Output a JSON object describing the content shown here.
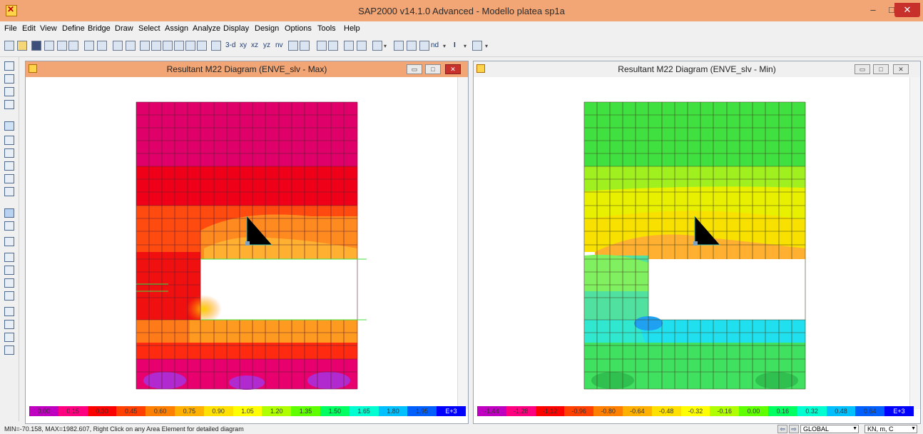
{
  "window": {
    "title": "SAP2000 v14.1.0 Advanced  - Modello platea sp1a",
    "minimize": "–",
    "maximize": "□",
    "close": "✕"
  },
  "menu": [
    "File",
    "Edit",
    "View",
    "Define",
    "Bridge",
    "Draw",
    "Select",
    "Assign",
    "Analyze",
    "Display",
    "Design",
    "Options",
    "Tools",
    "Help"
  ],
  "toolbar": {
    "view_3d": "3-d",
    "view_xy": "xy",
    "view_xz": "xz",
    "view_yz": "yz",
    "view_nv": "nv",
    "nd_label": "nd",
    "i_label": "I"
  },
  "panels": {
    "left": {
      "title": "Resultant M22 Diagram  (ENVE_slv - Max)",
      "legend": [
        "0.00",
        "0.15",
        "0.30",
        "0.45",
        "0.60",
        "0.75",
        "0.90",
        "1.05",
        "1.20",
        "1.35",
        "1.50",
        "1.65",
        "1.80",
        "1.95",
        "E+3"
      ],
      "legend_colors": [
        "#c000c0",
        "#ff0080",
        "#ff0000",
        "#ff4000",
        "#ff8000",
        "#ffb000",
        "#ffe000",
        "#ffff00",
        "#b0ff00",
        "#60ff00",
        "#00ff60",
        "#00ffd0",
        "#00c0ff",
        "#0060ff",
        "#0000ff"
      ]
    },
    "right": {
      "title": "Resultant M22 Diagram  (ENVE_slv - Min)",
      "legend": [
        "-1.44",
        "-1.28",
        "-1.12",
        "-0.96",
        "-0.80",
        "-0.64",
        "-0.48",
        "-0.32",
        "-0.16",
        "0.00",
        "0.16",
        "0.32",
        "0.48",
        "0.64",
        "E+3"
      ],
      "legend_colors": [
        "#c000c0",
        "#ff0080",
        "#ff0000",
        "#ff4000",
        "#ff8000",
        "#ffb000",
        "#ffe000",
        "#ffff00",
        "#b0ff00",
        "#60ff00",
        "#00ff60",
        "#00ffd0",
        "#00c0ff",
        "#0060ff",
        "#0000ff"
      ]
    }
  },
  "status": {
    "text": "MIN=-70.158, MAX=1982.607, Right Click on any Area Element for detailed diagram",
    "coord_system": "GLOBAL",
    "units": "KN, m, C"
  }
}
